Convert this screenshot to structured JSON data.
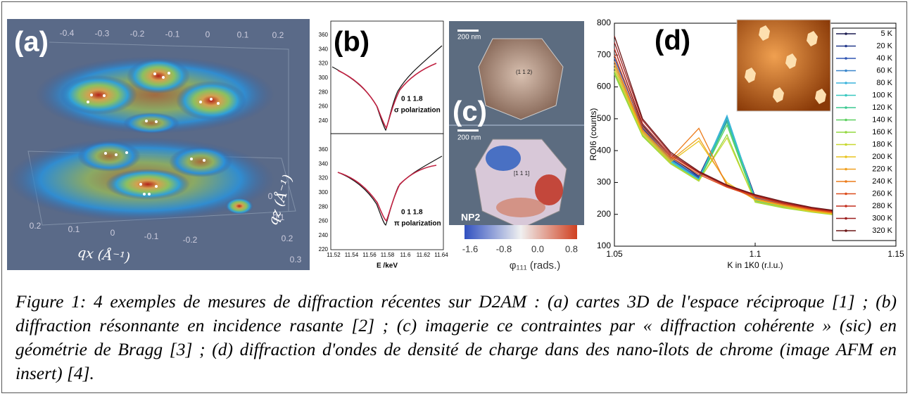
{
  "figure": {
    "panel_a": {
      "label": "(a)",
      "top_ticks": [
        "-0.4",
        "-0.3",
        "-0.2",
        "-0.1",
        "0",
        "0.1",
        "0.2"
      ],
      "bottom_ticks": [
        "0.2",
        "0.1",
        "0",
        "-0.1",
        "-0.2"
      ],
      "side_ticks": [
        "0.3",
        "0.2",
        "0.1",
        "0"
      ],
      "qx_label": "qx (Å⁻¹)",
      "qz_label": "qz (Å⁻¹)"
    },
    "panel_b": {
      "label": "(b)",
      "yticks_top": [
        "360",
        "340",
        "320",
        "300",
        "280",
        "260",
        "240"
      ],
      "yticks_bottom": [
        "360",
        "340",
        "320",
        "300",
        "280",
        "260",
        "240",
        "220"
      ],
      "xticks": [
        "11.52",
        "11.54",
        "11.56",
        "11.58",
        "11.6",
        "11.62",
        "11.64"
      ],
      "reflection_top": "0 1 1.8",
      "polarization_top": "σ polarization",
      "reflection_bottom": "0 1 1.8",
      "polarization_bottom": "π polarization",
      "xlabel": "E /keV"
    },
    "panel_c": {
      "label": "(c)",
      "scale_top": "200 nm",
      "scale_bottom": "200 nm",
      "facet_center": "(1 1 2)",
      "center_bottom": "[1 1 1]",
      "sample": "NP2",
      "colorbar_ticks": [
        "-1.6",
        "-0.8",
        "0.0",
        "0.8"
      ],
      "colorbar_label": "φ₁₁₁ (rads.)"
    },
    "caption": "Figure 1: 4 exemples de mesures de diffraction récentes sur D2AM : (a) cartes 3D de l'espace réciproque [1] ; (b) diffraction résonnante en incidence rasante [2] ; (c) imagerie ce contraintes par « diffraction cohérente » (sic) en géométrie de Bragg [3] ; (d) diffraction d'ondes de densité de charge dans des nano-îlots de chrome (image AFM en insert) [4]."
  },
  "chart_data": {
    "type": "line",
    "panel_label": "(d)",
    "xlabel": "K in 1K0 (r.l.u.)",
    "ylabel": "ROI6 (counts)",
    "xlim": [
      1.05,
      1.15
    ],
    "ylim": [
      100,
      800
    ],
    "xticks": [
      1.05,
      1.1,
      1.15
    ],
    "yticks": [
      100,
      200,
      300,
      400,
      500,
      600,
      700,
      800
    ],
    "x": [
      1.05,
      1.06,
      1.07,
      1.08,
      1.09,
      1.1,
      1.11,
      1.12,
      1.13,
      1.14,
      1.15
    ],
    "series": [
      {
        "name": "5 K",
        "color": "#1c1c50",
        "values": [
          720,
          480,
          380,
          320,
          500,
          255,
          235,
          220,
          205,
          195,
          185
        ]
      },
      {
        "name": "20 K",
        "color": "#243a8c",
        "values": [
          700,
          470,
          375,
          315,
          490,
          250,
          232,
          218,
          205,
          195,
          182
        ]
      },
      {
        "name": "40 K",
        "color": "#3056b4",
        "values": [
          690,
          475,
          370,
          318,
          495,
          252,
          230,
          215,
          203,
          193,
          180
        ]
      },
      {
        "name": "60 K",
        "color": "#3a86cc",
        "values": [
          680,
          465,
          372,
          312,
          505,
          248,
          228,
          214,
          202,
          192,
          180
        ]
      },
      {
        "name": "80 K",
        "color": "#3cb4dc",
        "values": [
          670,
          460,
          368,
          310,
          510,
          246,
          226,
          212,
          200,
          190,
          178
        ]
      },
      {
        "name": "100 K",
        "color": "#38c8c0",
        "values": [
          660,
          455,
          366,
          308,
          500,
          244,
          225,
          211,
          199,
          189,
          176
        ]
      },
      {
        "name": "120 K",
        "color": "#3cc890",
        "values": [
          650,
          450,
          362,
          306,
          490,
          242,
          224,
          210,
          198,
          188,
          175
        ]
      },
      {
        "name": "140 K",
        "color": "#5cd060",
        "values": [
          645,
          448,
          360,
          305,
          480,
          240,
          222,
          208,
          197,
          187,
          174
        ]
      },
      {
        "name": "160 K",
        "color": "#94d840",
        "values": [
          640,
          445,
          358,
          304,
          450,
          238,
          220,
          207,
          196,
          186,
          173
        ]
      },
      {
        "name": "180 K",
        "color": "#c8d830",
        "values": [
          650,
          450,
          360,
          306,
          440,
          240,
          222,
          208,
          197,
          187,
          175
        ]
      },
      {
        "name": "200 K",
        "color": "#e8c420",
        "values": [
          660,
          455,
          365,
          430,
          300,
          245,
          226,
          210,
          199,
          189,
          178
        ]
      },
      {
        "name": "220 K",
        "color": "#f0a020",
        "values": [
          670,
          460,
          370,
          440,
          295,
          248,
          228,
          212,
          200,
          190,
          180
        ]
      },
      {
        "name": "240 K",
        "color": "#ec7c1c",
        "values": [
          680,
          465,
          375,
          470,
          290,
          250,
          230,
          214,
          202,
          192,
          182
        ]
      },
      {
        "name": "260 K",
        "color": "#dc4c1c",
        "values": [
          700,
          475,
          380,
          325,
          285,
          255,
          233,
          216,
          204,
          194,
          184
        ]
      },
      {
        "name": "280 K",
        "color": "#c42e1e",
        "values": [
          720,
          485,
          385,
          330,
          288,
          258,
          235,
          218,
          206,
          196,
          186
        ]
      },
      {
        "name": "300 K",
        "color": "#9c1e1e",
        "values": [
          740,
          495,
          390,
          332,
          290,
          260,
          237,
          220,
          208,
          198,
          188
        ]
      },
      {
        "name": "320 K",
        "color": "#6c1616",
        "values": [
          760,
          500,
          395,
          335,
          292,
          262,
          240,
          222,
          210,
          200,
          190
        ]
      }
    ]
  }
}
